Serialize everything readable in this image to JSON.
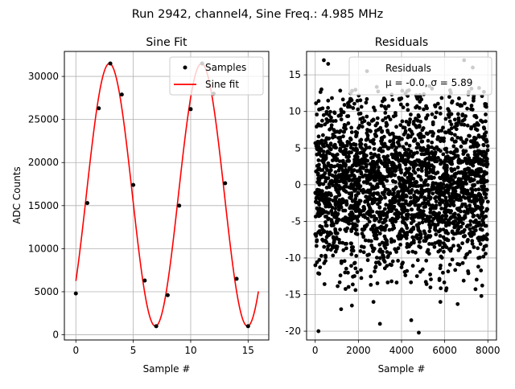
{
  "figure": {
    "suptitle": "Run 2942, channel4, Sine Freq.: 4.985 MHz"
  },
  "chart_data": [
    {
      "type": "line",
      "title": "Sine Fit",
      "xlabel": "Sample #",
      "ylabel": "ADC Counts",
      "xlim": [
        -1.0,
        16.8
      ],
      "ylim": [
        -600,
        32900
      ],
      "xticks": [
        0,
        5,
        10,
        15
      ],
      "yticks": [
        0,
        5000,
        10000,
        15000,
        20000,
        25000,
        30000
      ],
      "grid": true,
      "legend_position": "top-right",
      "series": [
        {
          "name": "Samples",
          "kind": "scatter",
          "color": "#000000",
          "x": [
            0,
            1,
            2,
            3,
            4,
            5,
            6,
            7,
            8,
            9,
            10,
            11,
            12,
            13,
            14,
            15
          ],
          "y": [
            4800,
            15300,
            26300,
            31500,
            27900,
            17400,
            6300,
            1000,
            4600,
            15000,
            26200,
            31500,
            28000,
            17600,
            6500,
            1000
          ]
        },
        {
          "name": "Sine fit",
          "kind": "line",
          "color": "#ff0000",
          "model": {
            "offset": 16250,
            "amplitude": 15250,
            "period": 8.02,
            "phase_deg": -41,
            "x_range": [
              0,
              15.9
            ]
          }
        }
      ]
    },
    {
      "type": "scatter",
      "title": "Residuals",
      "xlabel": "Sample #",
      "ylim": [
        -21.2,
        18.2
      ],
      "xlim": [
        -400,
        8400
      ],
      "xticks": [
        0,
        2000,
        4000,
        6000,
        8000
      ],
      "yticks": [
        -20,
        -15,
        -10,
        -5,
        0,
        5,
        10,
        15
      ],
      "grid": true,
      "legend_position": "top-right",
      "series": [
        {
          "name": "Residuals",
          "color": "#000000",
          "x_range": [
            0,
            8000
          ],
          "mean": -0.0,
          "std": 5.89
        }
      ],
      "legend_stat_line": "μ = -0.0, σ = 5.89",
      "outliers": [
        {
          "x": 150,
          "y": -20.0
        },
        {
          "x": 4800,
          "y": -20.2
        },
        {
          "x": 3000,
          "y": -19.0
        },
        {
          "x": 4450,
          "y": -18.5
        },
        {
          "x": 2400,
          "y": 15.5
        },
        {
          "x": 400,
          "y": 17.0
        },
        {
          "x": 600,
          "y": 16.5
        },
        {
          "x": 6900,
          "y": 17.0
        },
        {
          "x": 7300,
          "y": 16.0
        },
        {
          "x": 7700,
          "y": -15.2
        },
        {
          "x": 1700,
          "y": -16.5
        },
        {
          "x": 2700,
          "y": -16.0
        },
        {
          "x": 5800,
          "y": -16.0
        },
        {
          "x": 1200,
          "y": -17.0
        },
        {
          "x": 6600,
          "y": -16.3
        }
      ]
    }
  ]
}
